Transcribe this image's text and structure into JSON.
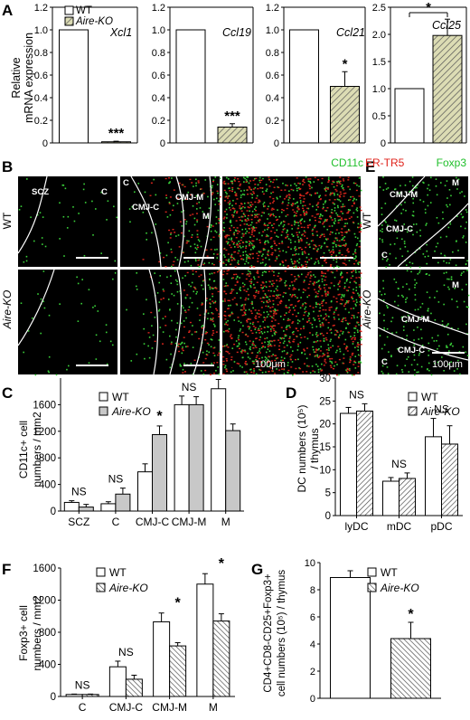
{
  "figure": {
    "panels": {
      "A": "A",
      "B": "B",
      "C": "C",
      "D": "D",
      "E": "E",
      "F": "F",
      "G": "G"
    },
    "panel_A": {
      "ylabel_line1": "Relative",
      "ylabel_line2": "mRNA expression",
      "legend": [
        "WT",
        "Aire-KO"
      ]
    },
    "panel_B": {
      "stain_green": "CD11c",
      "stain_red": "ER-TR5",
      "rows": [
        "WT",
        "Aire-KO"
      ],
      "region_labels": [
        "SCZ",
        "C",
        "C",
        "CMJ-C",
        "CMJ-M",
        "M"
      ],
      "scalebar": "100μm"
    },
    "panel_E": {
      "stain_green": "Foxp3",
      "rows": [
        "WT",
        "Aire-KO"
      ],
      "region_labels_wt": [
        "CMJ-M",
        "M",
        "CMJ-C",
        "C"
      ],
      "region_labels_ko": [
        "M",
        "CMJ-M",
        "CMJ-C",
        "C"
      ],
      "scalebar": "100μm"
    },
    "panel_C": {
      "ylabel_line1": "CD11c+ cell",
      "ylabel_line2": "numbers / mm2",
      "legend": [
        "WT",
        "Aire-KO"
      ]
    },
    "panel_D": {
      "ylabel_line1": "DC numbers (10⁵)",
      "ylabel_line2": "/ thymus",
      "legend": [
        "WT",
        "Aire-KO"
      ]
    },
    "panel_F": {
      "ylabel_line1": "Foxp3+ cell",
      "ylabel_line2": "numbers / mm2",
      "legend": [
        "WT",
        "Aire-KO"
      ]
    },
    "panel_G": {
      "ylabel_line1": "CD4+CD8-CD25+Foxp3+",
      "ylabel_line2": "cell numbers (10⁵) / thymus",
      "legend": [
        "WT",
        "Aire-KO"
      ]
    }
  },
  "colors": {
    "wt_fill": "#ffffff",
    "ko_fill_A": "#d8d8b0",
    "ko_fill_C": "#c8c8c8",
    "ko_hatch": "#555555",
    "green": "#3ad13a",
    "red": "#e0221a"
  },
  "chart_data": [
    {
      "id": "A1",
      "type": "bar",
      "title": "Xcl1",
      "categories": [
        "WT",
        "Aire-KO"
      ],
      "values": [
        1.0,
        0.01
      ],
      "errors": [
        0,
        0.005
      ],
      "ylim": [
        0,
        1.2
      ],
      "yticks": [
        "0",
        "0.2",
        "0.4",
        "0.6",
        "0.8",
        "1.0",
        "1.2"
      ],
      "significance": [
        "",
        "***"
      ]
    },
    {
      "id": "A2",
      "type": "bar",
      "title": "Ccl19",
      "categories": [
        "WT",
        "Aire-KO"
      ],
      "values": [
        1.0,
        0.14
      ],
      "errors": [
        0,
        0.03
      ],
      "ylim": [
        0,
        1.2
      ],
      "yticks": [
        "0",
        "0.2",
        "0.4",
        "0.6",
        "0.8",
        "1.0",
        "1.2"
      ],
      "significance": [
        "",
        "***"
      ]
    },
    {
      "id": "A3",
      "type": "bar",
      "title": "Ccl21",
      "categories": [
        "WT",
        "Aire-KO"
      ],
      "values": [
        1.0,
        0.5
      ],
      "errors": [
        0,
        0.13
      ],
      "ylim": [
        0,
        1.2
      ],
      "yticks": [
        "0",
        "0.2",
        "0.4",
        "0.6",
        "0.8",
        "1.0",
        "1.2"
      ],
      "significance": [
        "",
        "*"
      ]
    },
    {
      "id": "A4",
      "type": "bar",
      "title": "Ccl25",
      "categories": [
        "WT",
        "Aire-KO"
      ],
      "values": [
        1.0,
        1.98
      ],
      "errors": [
        0,
        0.3
      ],
      "ylim": [
        0,
        2.5
      ],
      "yticks": [
        "0",
        "0.5",
        "1.0",
        "1.5",
        "2.0",
        "2.5"
      ],
      "significance_bracket": "*"
    },
    {
      "id": "C",
      "type": "bar",
      "categories": [
        "SCZ",
        "C",
        "CMJ-C",
        "CMJ-M",
        "M"
      ],
      "series": [
        {
          "name": "WT",
          "values": [
            130,
            110,
            590,
            1600,
            1840
          ],
          "errors": [
            25,
            30,
            120,
            130,
            140
          ]
        },
        {
          "name": "Aire-KO",
          "values": [
            60,
            255,
            1150,
            1600,
            1210
          ],
          "errors": [
            40,
            90,
            130,
            120,
            100
          ]
        }
      ],
      "ylim": [
        0,
        2000
      ],
      "yticks": [
        "0",
        "400",
        "800",
        "1200",
        "1600"
      ],
      "significance": [
        "NS",
        "NS",
        "*",
        "NS",
        "**"
      ]
    },
    {
      "id": "D",
      "type": "bar",
      "categories": [
        "lyDC",
        "mDC",
        "pDC"
      ],
      "series": [
        {
          "name": "WT",
          "values": [
            22.3,
            7.5,
            17.2
          ],
          "errors": [
            1.3,
            0.8,
            4.0
          ]
        },
        {
          "name": "Aire-KO",
          "values": [
            22.8,
            8.1,
            15.6
          ],
          "errors": [
            1.6,
            1.2,
            4.0
          ]
        }
      ],
      "ylim": [
        0,
        30
      ],
      "yticks": [
        "0",
        "5",
        "10",
        "15",
        "20",
        "25",
        "30"
      ],
      "significance": [
        "NS",
        "NS",
        "NS"
      ]
    },
    {
      "id": "F",
      "type": "bar",
      "categories": [
        "C",
        "CMJ-C",
        "CMJ-M",
        "M"
      ],
      "series": [
        {
          "name": "WT",
          "values": [
            25,
            370,
            930,
            1400
          ],
          "errors": [
            5,
            70,
            110,
            130
          ]
        },
        {
          "name": "Aire-KO",
          "values": [
            25,
            215,
            630,
            940
          ],
          "errors": [
            5,
            50,
            40,
            90
          ]
        }
      ],
      "ylim": [
        0,
        1600
      ],
      "yticks": [
        "0",
        "400",
        "800",
        "1200",
        "1600"
      ],
      "significance": [
        "NS",
        "NS",
        "*",
        "*"
      ]
    },
    {
      "id": "G",
      "type": "bar",
      "categories": [
        "WT",
        "Aire-KO"
      ],
      "values": [
        8.9,
        4.4
      ],
      "errors": [
        0.5,
        1.2
      ],
      "ylim": [
        0,
        10
      ],
      "yticks": [
        "0",
        "2",
        "4",
        "6",
        "8",
        "10"
      ],
      "significance": [
        "",
        "*"
      ]
    }
  ]
}
